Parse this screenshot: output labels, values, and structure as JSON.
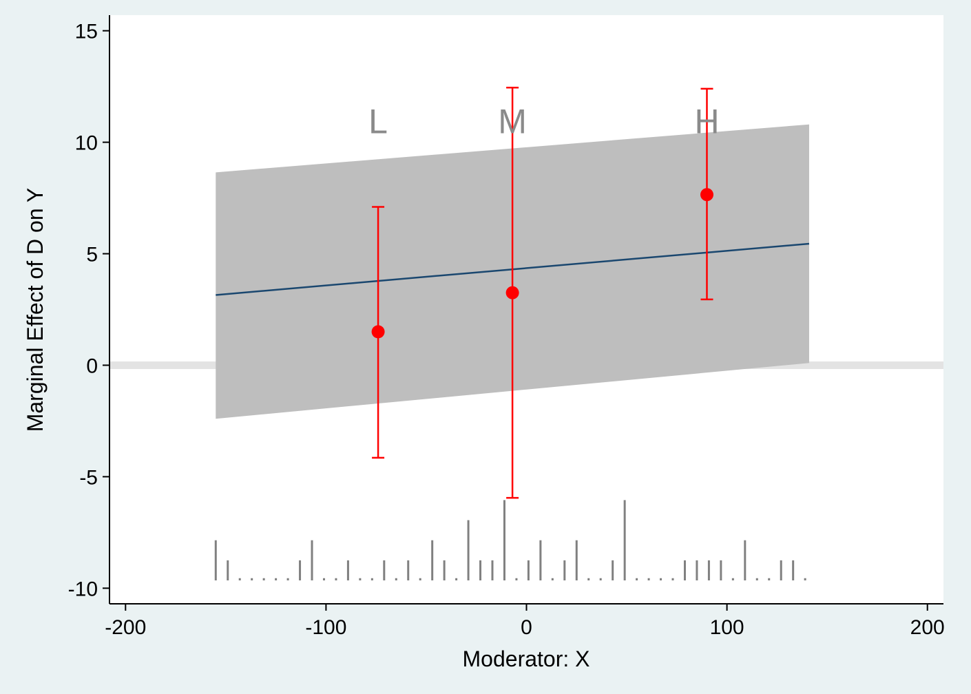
{
  "chart_data": {
    "type": "line",
    "title": "",
    "xlabel": "Moderator: X",
    "ylabel": "Marginal Effect of D on Y",
    "xlim": [
      -208,
      208
    ],
    "ylim": [
      -10.7,
      15.7
    ],
    "xticks": [
      -200,
      -100,
      0,
      100,
      200
    ],
    "yticks": [
      -10,
      -5,
      0,
      5,
      10,
      15
    ],
    "xtick_labels": [
      "-200",
      "-100",
      "0",
      "100",
      "200"
    ],
    "ytick_labels": [
      "-10",
      "-5",
      "0",
      "5",
      "10",
      "15"
    ],
    "grid": false,
    "legend": "none",
    "zero_line": 0,
    "marginal_effect_line": {
      "x": [
        -155,
        141
      ],
      "y": [
        3.15,
        5.45
      ]
    },
    "confidence_band": {
      "x": [
        -155,
        141
      ],
      "lower": [
        -2.4,
        0.1
      ],
      "upper": [
        8.65,
        10.8
      ]
    },
    "bin_estimates": [
      {
        "label": "L",
        "x": -74,
        "estimate": 1.5,
        "ci_low": -4.15,
        "ci_high": 7.1
      },
      {
        "label": "M",
        "x": -7,
        "estimate": 3.25,
        "ci_low": -5.95,
        "ci_high": 12.45
      },
      {
        "label": "H",
        "x": 90,
        "estimate": 7.65,
        "ci_low": 2.95,
        "ci_high": 12.4
      }
    ],
    "bin_label_y": 10.4,
    "histogram_baseline": -9.65,
    "histogram": {
      "x": [
        -155,
        -149,
        -143,
        -137,
        -131,
        -125,
        -119,
        -113,
        -107,
        -101,
        -95,
        -89,
        -83,
        -77,
        -71,
        -65,
        -59,
        -53,
        -47,
        -41,
        -35,
        -29,
        -23,
        -17,
        -11,
        -5,
        1,
        7,
        13,
        19,
        25,
        31,
        37,
        43,
        49,
        55,
        61,
        67,
        73,
        79,
        85,
        91,
        97,
        103,
        109,
        115,
        121,
        127,
        133,
        139
      ],
      "height": [
        1.8,
        0.9,
        0.1,
        0.1,
        0.1,
        0.1,
        0.1,
        0.9,
        1.8,
        0.1,
        0.1,
        0.9,
        0.1,
        0.1,
        0.9,
        0.1,
        0.9,
        0.1,
        1.8,
        0.9,
        0.1,
        2.7,
        0.9,
        0.9,
        3.6,
        0.1,
        0.9,
        1.8,
        0.1,
        0.9,
        1.8,
        0.1,
        0.1,
        0.9,
        3.6,
        0.1,
        0.1,
        0.1,
        0.1,
        0.9,
        0.9,
        0.9,
        0.9,
        0.1,
        1.8,
        0.1,
        0.1,
        0.9,
        0.9,
        0.1
      ]
    },
    "colors": {
      "background": "#eaf2f3",
      "plot_area": "#ffffff",
      "band": "#bebebe",
      "effect_line": "#1a476f",
      "bin_points": "#ff0000",
      "zero_line": "#e3e3e3",
      "histogram": "#808080",
      "bin_labels": "#8a8a8a"
    }
  }
}
